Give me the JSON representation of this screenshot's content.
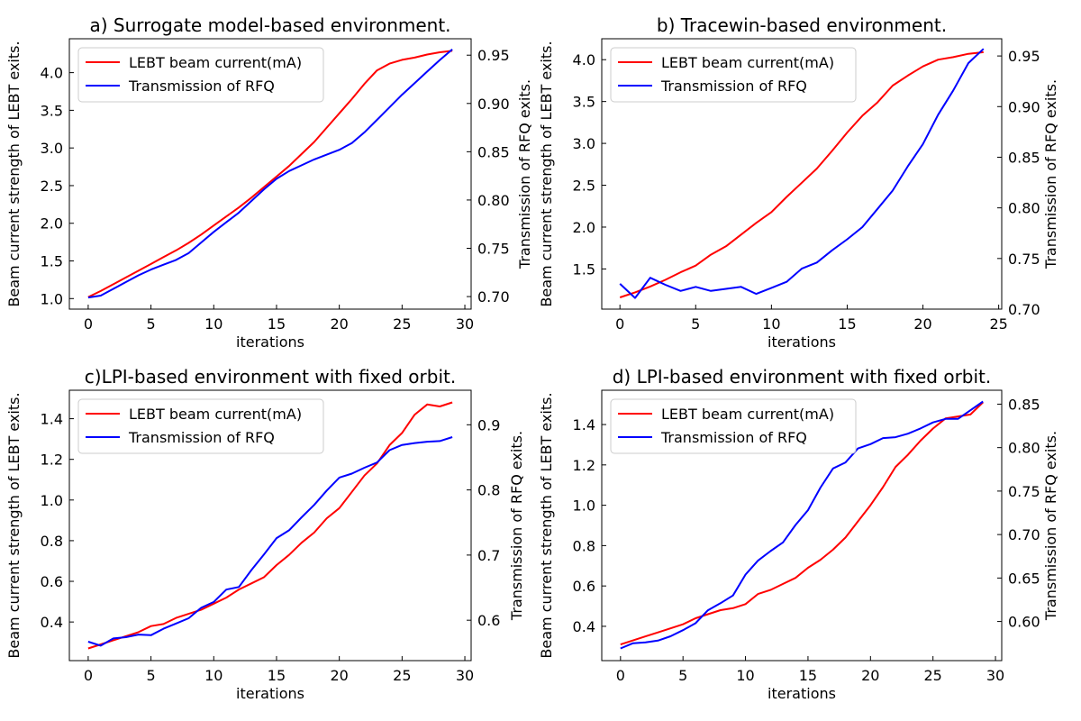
{
  "chart_data": [
    {
      "type": "line",
      "title": "a) Surrogate model-based environment.",
      "xlabel": "iterations",
      "ylabel_left": "Beam current strength of LEBT exits.",
      "ylabel_right": "Transmission of RFQ exits.",
      "xlim": [
        -1.5,
        30.5
      ],
      "ylim_left": [
        0.86,
        4.45
      ],
      "ylim_right": [
        0.687,
        0.967
      ],
      "xticks": [
        0,
        5,
        10,
        15,
        20,
        25,
        30
      ],
      "xtick_labels": [
        "0",
        "5",
        "10",
        "15",
        "20",
        "25",
        "30"
      ],
      "yticks_left": [
        1.0,
        1.5,
        2.0,
        2.5,
        3.0,
        3.5,
        4.0
      ],
      "ytick_labels_left": [
        "1.0",
        "1.5",
        "2.0",
        "2.5",
        "3.0",
        "3.5",
        "4.0"
      ],
      "yticks_right": [
        0.7,
        0.75,
        0.8,
        0.85,
        0.9,
        0.95
      ],
      "ytick_labels_right": [
        "0.70",
        "0.75",
        "0.80",
        "0.85",
        "0.90",
        "0.95"
      ],
      "legend": "top-left",
      "series": [
        {
          "name": "LEBT beam current(mA)",
          "axis": "left",
          "color": "#ff0000",
          "x": [
            0,
            1,
            2,
            3,
            4,
            5,
            6,
            7,
            8,
            9,
            10,
            11,
            12,
            13,
            14,
            15,
            16,
            17,
            18,
            19,
            20,
            21,
            22,
            23,
            24,
            25,
            26,
            27,
            28,
            29
          ],
          "values": [
            1.02,
            1.1,
            1.19,
            1.28,
            1.37,
            1.46,
            1.55,
            1.64,
            1.74,
            1.85,
            1.97,
            2.09,
            2.21,
            2.34,
            2.48,
            2.62,
            2.76,
            2.92,
            3.08,
            3.27,
            3.46,
            3.65,
            3.85,
            4.03,
            4.12,
            4.17,
            4.2,
            4.24,
            4.27,
            4.29
          ]
        },
        {
          "name": "Transmission of RFQ",
          "axis": "right",
          "color": "#0000ff",
          "x": [
            0,
            1,
            2,
            3,
            4,
            5,
            6,
            7,
            8,
            9,
            10,
            11,
            12,
            13,
            14,
            15,
            16,
            17,
            18,
            19,
            20,
            21,
            22,
            23,
            24,
            25,
            26,
            27,
            28,
            29
          ],
          "values": [
            0.699,
            0.701,
            0.708,
            0.715,
            0.722,
            0.728,
            0.733,
            0.738,
            0.745,
            0.756,
            0.767,
            0.777,
            0.787,
            0.799,
            0.811,
            0.822,
            0.83,
            0.836,
            0.842,
            0.847,
            0.852,
            0.859,
            0.87,
            0.883,
            0.896,
            0.909,
            0.921,
            0.933,
            0.945,
            0.956
          ]
        }
      ]
    },
    {
      "type": "line",
      "title": "b) Tracewin-based environment.",
      "xlabel": "iterations",
      "ylabel_left": "Beam current strength of LEBT exits.",
      "ylabel_right": "Transmission of RFQ exits.",
      "xlim": [
        -1.2,
        25.2
      ],
      "ylim_left": [
        1.02,
        4.25
      ],
      "ylim_right": [
        0.7,
        0.967
      ],
      "xticks": [
        0,
        5,
        10,
        15,
        20,
        25
      ],
      "xtick_labels": [
        "0",
        "5",
        "10",
        "15",
        "20",
        "25"
      ],
      "yticks_left": [
        1.5,
        2.0,
        2.5,
        3.0,
        3.5,
        4.0
      ],
      "ytick_labels_left": [
        "1.5",
        "2.0",
        "2.5",
        "3.0",
        "3.5",
        "4.0"
      ],
      "yticks_right": [
        0.7,
        0.75,
        0.8,
        0.85,
        0.9,
        0.95
      ],
      "ytick_labels_right": [
        "0.70",
        "0.75",
        "0.80",
        "0.85",
        "0.90",
        "0.95"
      ],
      "legend": "top-left",
      "series": [
        {
          "name": "LEBT beam current(mA)",
          "axis": "left",
          "color": "#ff0000",
          "x": [
            0,
            1,
            2,
            3,
            4,
            5,
            6,
            7,
            8,
            9,
            10,
            11,
            12,
            13,
            14,
            15,
            16,
            17,
            18,
            19,
            20,
            21,
            22,
            23,
            24
          ],
          "values": [
            1.16,
            1.22,
            1.29,
            1.37,
            1.46,
            1.54,
            1.67,
            1.77,
            1.91,
            2.05,
            2.18,
            2.36,
            2.53,
            2.7,
            2.91,
            3.13,
            3.33,
            3.49,
            3.69,
            3.81,
            3.92,
            4.0,
            4.03,
            4.07,
            4.09
          ]
        },
        {
          "name": "Transmission of RFQ",
          "axis": "right",
          "color": "#0000ff",
          "x": [
            0,
            1,
            2,
            3,
            4,
            5,
            6,
            7,
            8,
            9,
            10,
            11,
            12,
            13,
            14,
            15,
            16,
            17,
            18,
            19,
            20,
            21,
            22,
            23,
            24
          ],
          "values": [
            0.725,
            0.711,
            0.731,
            0.724,
            0.718,
            0.722,
            0.718,
            0.72,
            0.722,
            0.715,
            0.721,
            0.727,
            0.74,
            0.746,
            0.758,
            0.769,
            0.781,
            0.799,
            0.817,
            0.841,
            0.863,
            0.892,
            0.916,
            0.943,
            0.957
          ]
        }
      ]
    },
    {
      "type": "line",
      "title": "c)LPI-based environment with fixed orbit.",
      "xlabel": "iterations",
      "ylabel_left": "Beam current strength of LEBT exits.",
      "ylabel_right": "Transmission of RFQ exits.",
      "xlim": [
        -1.5,
        30.5
      ],
      "ylim_left": [
        0.21,
        1.54
      ],
      "ylim_right": [
        0.538,
        0.953
      ],
      "xticks": [
        0,
        5,
        10,
        15,
        20,
        25,
        30
      ],
      "xtick_labels": [
        "0",
        "5",
        "10",
        "15",
        "20",
        "25",
        "30"
      ],
      "yticks_left": [
        0.4,
        0.6,
        0.8,
        1.0,
        1.2,
        1.4
      ],
      "ytick_labels_left": [
        "0.4",
        "0.6",
        "0.8",
        "1.0",
        "1.2",
        "1.4"
      ],
      "yticks_right": [
        0.6,
        0.7,
        0.8,
        0.9
      ],
      "ytick_labels_right": [
        "0.6",
        "0.7",
        "0.8",
        "0.9"
      ],
      "legend": "top-left",
      "series": [
        {
          "name": "LEBT beam current(mA)",
          "axis": "left",
          "color": "#ff0000",
          "x": [
            0,
            1,
            2,
            3,
            4,
            5,
            6,
            7,
            8,
            9,
            10,
            11,
            12,
            13,
            14,
            15,
            16,
            17,
            18,
            19,
            20,
            21,
            22,
            23,
            24,
            25,
            26,
            27,
            28,
            29
          ],
          "values": [
            0.27,
            0.29,
            0.31,
            0.33,
            0.35,
            0.38,
            0.39,
            0.42,
            0.44,
            0.46,
            0.49,
            0.52,
            0.56,
            0.59,
            0.62,
            0.68,
            0.73,
            0.79,
            0.84,
            0.91,
            0.96,
            1.04,
            1.12,
            1.18,
            1.27,
            1.33,
            1.42,
            1.47,
            1.46,
            1.48
          ]
        },
        {
          "name": "Transmission of RFQ",
          "axis": "right",
          "color": "#0000ff",
          "x": [
            0,
            1,
            2,
            3,
            4,
            5,
            6,
            7,
            8,
            9,
            10,
            11,
            12,
            13,
            14,
            15,
            16,
            17,
            18,
            19,
            20,
            21,
            22,
            23,
            24,
            25,
            26,
            27,
            28,
            29
          ],
          "values": [
            0.567,
            0.561,
            0.572,
            0.574,
            0.578,
            0.577,
            0.587,
            0.595,
            0.603,
            0.619,
            0.628,
            0.647,
            0.651,
            0.677,
            0.701,
            0.726,
            0.738,
            0.758,
            0.777,
            0.799,
            0.819,
            0.825,
            0.834,
            0.842,
            0.861,
            0.869,
            0.872,
            0.874,
            0.875,
            0.881
          ]
        }
      ]
    },
    {
      "type": "line",
      "title": "d) LPI-based environment with fixed orbit.",
      "xlabel": "iterations",
      "ylabel_left": "Beam current strength of LEBT exits.",
      "ylabel_right": "Transmission of RFQ exits.",
      "xlim": [
        -1.5,
        30.5
      ],
      "ylim_left": [
        0.23,
        1.57
      ],
      "ylim_right": [
        0.555,
        0.866
      ],
      "xticks": [
        0,
        5,
        10,
        15,
        20,
        25,
        30
      ],
      "xtick_labels": [
        "0",
        "5",
        "10",
        "15",
        "20",
        "25",
        "30"
      ],
      "yticks_left": [
        0.4,
        0.6,
        0.8,
        1.0,
        1.2,
        1.4
      ],
      "ytick_labels_left": [
        "0.4",
        "0.6",
        "0.8",
        "1.0",
        "1.2",
        "1.4"
      ],
      "yticks_right": [
        0.6,
        0.65,
        0.7,
        0.75,
        0.8,
        0.85
      ],
      "ytick_labels_right": [
        "0.60",
        "0.65",
        "0.70",
        "0.75",
        "0.80",
        "0.85"
      ],
      "legend": "top-left",
      "series": [
        {
          "name": "LEBT beam current(mA)",
          "axis": "left",
          "color": "#ff0000",
          "x": [
            0,
            1,
            2,
            3,
            4,
            5,
            6,
            7,
            8,
            9,
            10,
            11,
            12,
            13,
            14,
            15,
            16,
            17,
            18,
            19,
            20,
            21,
            22,
            23,
            24,
            25,
            26,
            27,
            28,
            29
          ],
          "values": [
            0.31,
            0.33,
            0.35,
            0.37,
            0.39,
            0.41,
            0.44,
            0.46,
            0.48,
            0.49,
            0.51,
            0.56,
            0.58,
            0.61,
            0.64,
            0.69,
            0.73,
            0.78,
            0.84,
            0.92,
            1.0,
            1.09,
            1.19,
            1.25,
            1.32,
            1.38,
            1.43,
            1.44,
            1.45,
            1.51
          ]
        },
        {
          "name": "Transmission of RFQ",
          "axis": "right",
          "color": "#0000ff",
          "x": [
            0,
            1,
            2,
            3,
            4,
            5,
            6,
            7,
            8,
            9,
            10,
            11,
            12,
            13,
            14,
            15,
            16,
            17,
            18,
            19,
            20,
            21,
            22,
            23,
            24,
            25,
            26,
            27,
            28,
            29
          ],
          "values": [
            0.569,
            0.575,
            0.576,
            0.578,
            0.583,
            0.59,
            0.598,
            0.613,
            0.621,
            0.63,
            0.654,
            0.67,
            0.681,
            0.691,
            0.711,
            0.728,
            0.754,
            0.776,
            0.783,
            0.799,
            0.804,
            0.811,
            0.812,
            0.816,
            0.822,
            0.829,
            0.833,
            0.833,
            0.843,
            0.853
          ]
        }
      ]
    }
  ]
}
